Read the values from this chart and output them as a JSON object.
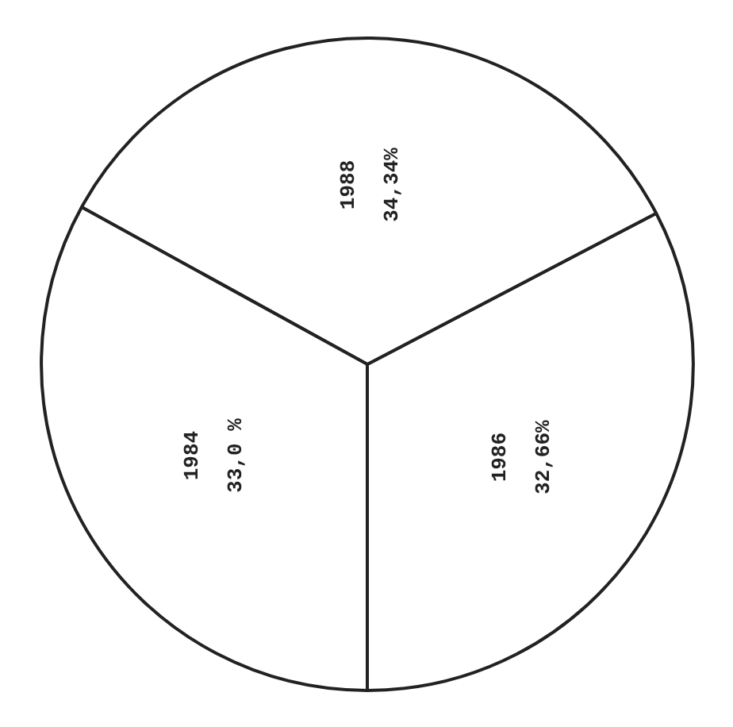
{
  "chart_data": {
    "type": "pie",
    "categories": [
      "1986",
      "1988",
      "1984"
    ],
    "values": [
      32.66,
      34.34,
      33.0
    ],
    "value_labels": [
      "32,66%",
      "34,34%",
      "33,0 %"
    ],
    "colors": [
      "#ffffff",
      "#ffffff",
      "#ffffff"
    ]
  }
}
